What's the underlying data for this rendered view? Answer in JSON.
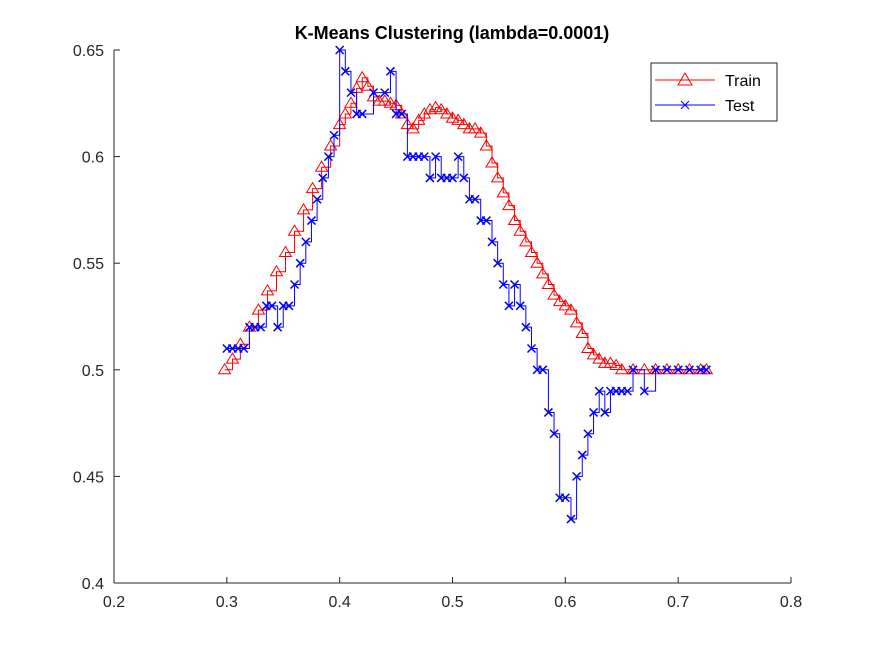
{
  "chart_data": {
    "type": "line",
    "title": "K-Means Clustering (lambda=0.0001)",
    "xlabel": "",
    "ylabel": "",
    "xlim": [
      0.2,
      0.8
    ],
    "ylim": [
      0.4,
      0.65
    ],
    "xticks": [
      0.2,
      0.3,
      0.4,
      0.5,
      0.6,
      0.7,
      0.8
    ],
    "xtick_labels": [
      "0.2",
      "0.3",
      "0.4",
      "0.5",
      "0.6",
      "0.7",
      "0.8"
    ],
    "yticks": [
      0.4,
      0.45,
      0.5,
      0.55,
      0.6,
      0.65
    ],
    "ytick_labels": [
      "0.4",
      "0.45",
      "0.5",
      "0.55",
      "0.6",
      "0.65"
    ],
    "grid": false,
    "legend_position": "top-right",
    "series": [
      {
        "name": "Train",
        "color": "#ff0000",
        "marker": "triangle",
        "x": [
          0.298,
          0.305,
          0.312,
          0.32,
          0.328,
          0.336,
          0.344,
          0.352,
          0.36,
          0.368,
          0.376,
          0.384,
          0.392,
          0.4,
          0.405,
          0.41,
          0.415,
          0.42,
          0.425,
          0.43,
          0.435,
          0.44,
          0.445,
          0.45,
          0.455,
          0.46,
          0.465,
          0.47,
          0.475,
          0.48,
          0.485,
          0.49,
          0.495,
          0.5,
          0.505,
          0.51,
          0.515,
          0.52,
          0.525,
          0.53,
          0.535,
          0.54,
          0.545,
          0.55,
          0.555,
          0.56,
          0.565,
          0.57,
          0.575,
          0.58,
          0.585,
          0.59,
          0.595,
          0.6,
          0.605,
          0.61,
          0.615,
          0.62,
          0.625,
          0.63,
          0.635,
          0.64,
          0.645,
          0.65,
          0.66,
          0.67,
          0.68,
          0.69,
          0.7,
          0.71,
          0.72,
          0.725
        ],
        "y": [
          0.5,
          0.505,
          0.512,
          0.52,
          0.528,
          0.537,
          0.546,
          0.555,
          0.565,
          0.575,
          0.585,
          0.595,
          0.605,
          0.615,
          0.62,
          0.625,
          0.632,
          0.637,
          0.633,
          0.628,
          0.626,
          0.626,
          0.625,
          0.624,
          0.62,
          0.615,
          0.613,
          0.617,
          0.62,
          0.622,
          0.623,
          0.622,
          0.62,
          0.618,
          0.617,
          0.615,
          0.613,
          0.613,
          0.611,
          0.605,
          0.597,
          0.59,
          0.583,
          0.577,
          0.57,
          0.565,
          0.56,
          0.555,
          0.55,
          0.545,
          0.54,
          0.535,
          0.532,
          0.53,
          0.528,
          0.522,
          0.517,
          0.51,
          0.507,
          0.505,
          0.503,
          0.503,
          0.502,
          0.5,
          0.5,
          0.5,
          0.5,
          0.5,
          0.5,
          0.5,
          0.5,
          0.5
        ]
      },
      {
        "name": "Test",
        "color": "#0000ff",
        "marker": "x",
        "x": [
          0.3,
          0.305,
          0.31,
          0.315,
          0.32,
          0.325,
          0.33,
          0.335,
          0.34,
          0.345,
          0.35,
          0.355,
          0.36,
          0.365,
          0.37,
          0.375,
          0.38,
          0.385,
          0.39,
          0.395,
          0.4,
          0.405,
          0.41,
          0.415,
          0.42,
          0.43,
          0.44,
          0.445,
          0.45,
          0.455,
          0.46,
          0.465,
          0.47,
          0.475,
          0.48,
          0.485,
          0.49,
          0.495,
          0.5,
          0.505,
          0.51,
          0.515,
          0.52,
          0.525,
          0.53,
          0.535,
          0.54,
          0.545,
          0.55,
          0.555,
          0.56,
          0.565,
          0.57,
          0.575,
          0.58,
          0.585,
          0.59,
          0.595,
          0.6,
          0.605,
          0.61,
          0.615,
          0.62,
          0.625,
          0.63,
          0.635,
          0.64,
          0.645,
          0.65,
          0.655,
          0.66,
          0.67,
          0.68,
          0.69,
          0.7,
          0.71,
          0.72,
          0.725
        ],
        "y": [
          0.51,
          0.51,
          0.51,
          0.51,
          0.52,
          0.52,
          0.52,
          0.53,
          0.53,
          0.52,
          0.53,
          0.53,
          0.54,
          0.55,
          0.56,
          0.57,
          0.58,
          0.59,
          0.6,
          0.61,
          0.65,
          0.64,
          0.63,
          0.62,
          0.62,
          0.63,
          0.63,
          0.64,
          0.62,
          0.62,
          0.6,
          0.6,
          0.6,
          0.6,
          0.59,
          0.6,
          0.59,
          0.59,
          0.59,
          0.6,
          0.59,
          0.58,
          0.58,
          0.57,
          0.57,
          0.56,
          0.55,
          0.54,
          0.53,
          0.54,
          0.53,
          0.52,
          0.51,
          0.5,
          0.5,
          0.48,
          0.47,
          0.44,
          0.44,
          0.43,
          0.45,
          0.46,
          0.47,
          0.48,
          0.49,
          0.48,
          0.49,
          0.49,
          0.49,
          0.49,
          0.5,
          0.49,
          0.5,
          0.5,
          0.5,
          0.5,
          0.5,
          0.5
        ]
      }
    ]
  }
}
